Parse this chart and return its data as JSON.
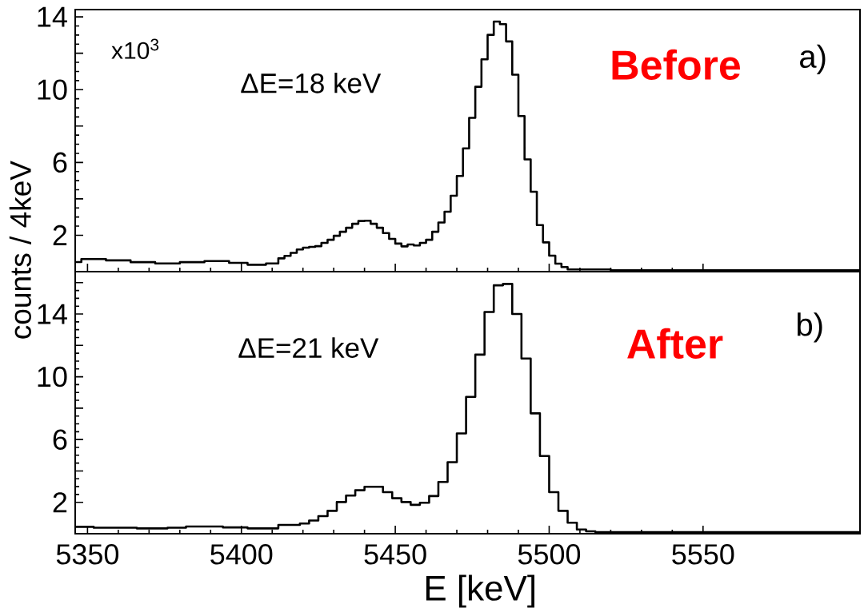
{
  "chart_data": [
    {
      "type": "histogram",
      "title": "Before",
      "ylabel": "counts / 4keV",
      "color": "#000000",
      "annotations": [
        "x10$^{3}$",
        "ΔE=18 keV",
        "a)"
      ],
      "bins": [
        5346,
        5348,
        5356,
        5364,
        5372,
        5380,
        5388,
        5396,
        5402,
        5408,
        5412,
        5414,
        5416,
        5418,
        5420,
        5422,
        5424,
        5426,
        5428,
        5430,
        5432,
        5434,
        5436,
        5438,
        5440,
        5442,
        5444,
        5446,
        5448,
        5450,
        5452,
        5454,
        5456,
        5458,
        5460,
        5462,
        5464,
        5466,
        5468,
        5470,
        5472,
        5474,
        5476,
        5478,
        5480,
        5482,
        5484,
        5486,
        5488,
        5490,
        5492,
        5494,
        5496,
        5498,
        5500,
        5502,
        5504,
        5506,
        5520,
        5601
      ],
      "values": [
        0.53,
        0.69,
        0.62,
        0.52,
        0.45,
        0.52,
        0.58,
        0.48,
        0.38,
        0.45,
        0.73,
        0.87,
        1.03,
        1.22,
        1.32,
        1.36,
        1.4,
        1.58,
        1.75,
        1.97,
        2.19,
        2.41,
        2.63,
        2.78,
        2.8,
        2.63,
        2.41,
        2.12,
        1.8,
        1.54,
        1.39,
        1.49,
        1.44,
        1.58,
        1.75,
        2.19,
        2.7,
        3.29,
        4.17,
        5.26,
        6.77,
        8.45,
        10.16,
        11.67,
        13.01,
        13.74,
        13.6,
        12.65,
        10.82,
        8.55,
        6.17,
        4.39,
        2.56,
        1.61,
        0.88,
        0.44,
        0.25,
        0.12,
        0.08
      ],
      "xlim": [
        5346,
        5601
      ],
      "xticks": [
        5350,
        5400,
        5450,
        5500,
        5550
      ],
      "ylim": [
        0,
        14.4
      ],
      "yticks": [
        2,
        {
          "value": 4,
          "label": null
        },
        6,
        {
          "value": 8,
          "label": null
        },
        10,
        {
          "value": 12,
          "label": null
        },
        14
      ],
      "tick_labels": "y"
    },
    {
      "type": "histogram",
      "title": "After",
      "xlabel": "E [keV]",
      "color": "#000000",
      "annotations": [
        "ΔE=21 keV",
        "b)"
      ],
      "bins": [
        5346,
        5352,
        5366,
        5376,
        5382,
        5394,
        5402,
        5412,
        5419,
        5422,
        5425,
        5428,
        5431,
        5434,
        5437,
        5440,
        5443,
        5446,
        5449,
        5452,
        5455,
        5458,
        5461,
        5464,
        5467,
        5470,
        5473,
        5476,
        5479,
        5482,
        5485,
        5488,
        5491,
        5494,
        5497,
        5500,
        5503,
        5506,
        5509,
        5512,
        5515,
        5601
      ],
      "values": [
        0.44,
        0.38,
        0.34,
        0.38,
        0.46,
        0.4,
        0.34,
        0.56,
        0.65,
        0.84,
        1.12,
        1.46,
        2.02,
        2.43,
        2.77,
        2.99,
        2.99,
        2.65,
        2.26,
        2.02,
        1.84,
        1.97,
        2.4,
        3.3,
        4.56,
        6.39,
        8.72,
        11.41,
        14.13,
        15.83,
        15.92,
        14.0,
        11.16,
        7.67,
        4.95,
        2.65,
        1.46,
        0.7,
        0.27,
        0.15,
        0.1
      ],
      "xlim": [
        5346,
        5601
      ],
      "xticks": [
        5350,
        5400,
        5450,
        5500,
        5550
      ],
      "ylim": [
        0,
        16.7
      ],
      "yticks": [
        2,
        {
          "value": 4,
          "label": null
        },
        6,
        {
          "value": 8,
          "label": null
        },
        10,
        {
          "value": 12,
          "label": null
        },
        14,
        {
          "value": 16,
          "label": null
        }
      ]
    }
  ]
}
